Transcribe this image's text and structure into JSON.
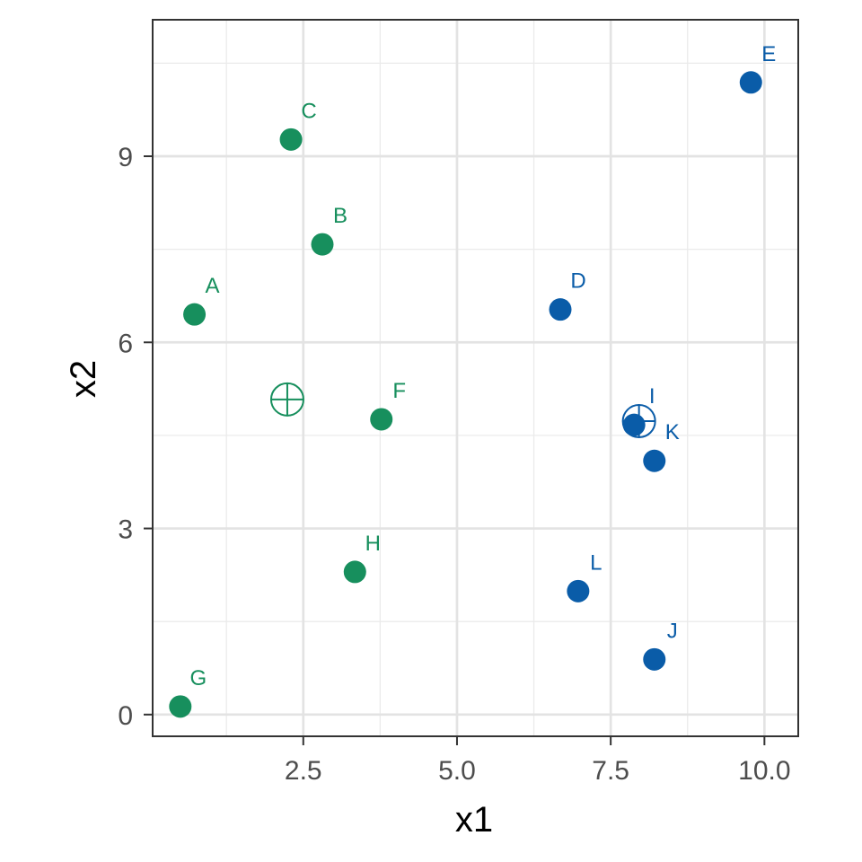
{
  "chart_data": {
    "type": "scatter",
    "title": "",
    "xlabel": "x1",
    "ylabel": "x2",
    "xlim": [
      0.05,
      10.55
    ],
    "ylim": [
      -0.35,
      11.2
    ],
    "x_ticks": [
      {
        "value": 2.5,
        "label": "2.5"
      },
      {
        "value": 5.0,
        "label": "5.0"
      },
      {
        "value": 7.5,
        "label": "7.5"
      },
      {
        "value": 10.0,
        "label": "10.0"
      }
    ],
    "y_ticks": [
      {
        "value": 0,
        "label": "0"
      },
      {
        "value": 3,
        "label": "3"
      },
      {
        "value": 6,
        "label": "6"
      },
      {
        "value": 9,
        "label": "9"
      }
    ],
    "grid": true,
    "legend": "none",
    "colors": {
      "cluster_1": "#178f5d",
      "cluster_2": "#0a5ca8"
    },
    "points": [
      {
        "label": "A",
        "x": 0.73,
        "y": 6.45,
        "cluster": 1
      },
      {
        "label": "B",
        "x": 2.81,
        "y": 7.58,
        "cluster": 1
      },
      {
        "label": "C",
        "x": 2.3,
        "y": 9.27,
        "cluster": 1
      },
      {
        "label": "D",
        "x": 6.68,
        "y": 6.53,
        "cluster": 2
      },
      {
        "label": "E",
        "x": 9.78,
        "y": 10.19,
        "cluster": 2
      },
      {
        "label": "F",
        "x": 3.77,
        "y": 4.76,
        "cluster": 1
      },
      {
        "label": "G",
        "x": 0.5,
        "y": 0.13,
        "cluster": 1
      },
      {
        "label": "H",
        "x": 3.34,
        "y": 2.3,
        "cluster": 1
      },
      {
        "label": "I",
        "x": 7.88,
        "y": 4.67,
        "cluster": 2
      },
      {
        "label": "J",
        "x": 8.21,
        "y": 0.89,
        "cluster": 2
      },
      {
        "label": "K",
        "x": 8.21,
        "y": 4.09,
        "cluster": 2
      },
      {
        "label": "L",
        "x": 6.97,
        "y": 1.99,
        "cluster": 2
      }
    ],
    "centroids": [
      {
        "x": 2.24,
        "y": 5.08,
        "cluster": 1
      },
      {
        "x": 7.96,
        "y": 4.73,
        "cluster": 2
      }
    ]
  }
}
